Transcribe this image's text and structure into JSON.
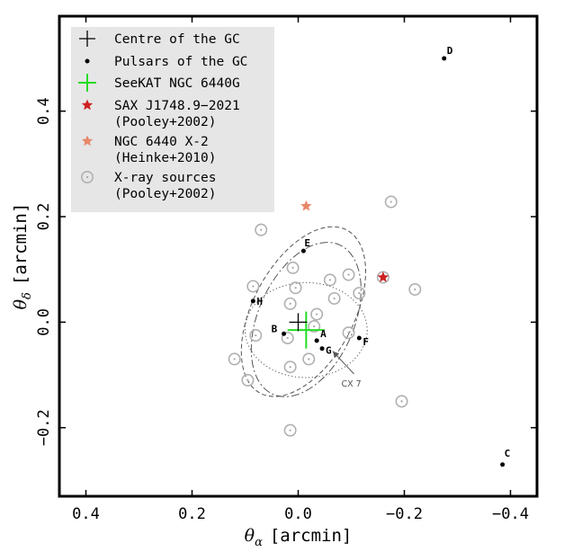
{
  "chart_data": {
    "type": "scatter",
    "xlabel_symbol": "θ",
    "xlabel_sub": "α",
    "xlabel_unit": "[arcmin]",
    "ylabel_symbol": "θ",
    "ylabel_sub": "δ",
    "ylabel_unit": "[arcmin]",
    "xlim": [
      0.45,
      -0.45
    ],
    "ylim": [
      -0.33,
      0.58
    ],
    "x_ticks": [
      {
        "value": 0.4,
        "label": "0.4"
      },
      {
        "value": 0.2,
        "label": "0.2"
      },
      {
        "value": 0.0,
        "label": "0.0"
      },
      {
        "value": -0.2,
        "label": "−0.2"
      },
      {
        "value": -0.4,
        "label": "−0.4"
      }
    ],
    "y_ticks": [
      {
        "value": -0.2,
        "label": "−0.2"
      },
      {
        "value": 0.0,
        "label": "0.0"
      },
      {
        "value": 0.2,
        "label": "0.2"
      },
      {
        "value": 0.4,
        "label": "0.4"
      }
    ],
    "grid": false,
    "legend_position": "top-left",
    "legend": [
      {
        "label": "Centre of the GC",
        "marker": "plus",
        "color": "#000000"
      },
      {
        "label": "Pulsars of the GC",
        "marker": "dot",
        "color": "#000000"
      },
      {
        "label": "SeeKAT NGC 6440G",
        "marker": "plus",
        "color": "#22dd22"
      },
      {
        "label": "SAX J1748.9−2021\n(Pooley+2002)",
        "marker": "star",
        "color": "#cc2222"
      },
      {
        "label": "NGC 6440 X-2\n(Heinke+2010)",
        "marker": "star",
        "color": "#e8876a"
      },
      {
        "label": "X-ray sources\n(Pooley+2002)",
        "marker": "ringdot",
        "color": "#aaaaaa"
      }
    ],
    "centre_of_gc": {
      "x": 0.0,
      "y": 0.0
    },
    "pulsars": [
      {
        "name": "A",
        "x": -0.035,
        "y": -0.035
      },
      {
        "name": "B",
        "x": 0.027,
        "y": -0.022
      },
      {
        "name": "C",
        "x": -0.385,
        "y": -0.27
      },
      {
        "name": "D",
        "x": -0.275,
        "y": 0.5
      },
      {
        "name": "E",
        "x": -0.01,
        "y": 0.135
      },
      {
        "name": "F",
        "x": -0.115,
        "y": -0.03
      },
      {
        "name": "G",
        "x": -0.045,
        "y": -0.05
      },
      {
        "name": "H",
        "x": 0.085,
        "y": 0.04
      }
    ],
    "seekat_position": {
      "x": -0.015,
      "y": -0.015,
      "x_err": 0.035,
      "y_err": 0.035
    },
    "sax_j1748": {
      "x": -0.16,
      "y": 0.085
    },
    "ngc6440_x2": {
      "x": -0.015,
      "y": 0.22
    },
    "xray_sources": [
      {
        "x": 0.07,
        "y": 0.175
      },
      {
        "x": 0.085,
        "y": 0.068
      },
      {
        "x": 0.08,
        "y": -0.025
      },
      {
        "x": 0.12,
        "y": -0.07
      },
      {
        "x": 0.095,
        "y": -0.11
      },
      {
        "x": 0.01,
        "y": 0.103
      },
      {
        "x": 0.005,
        "y": 0.065
      },
      {
        "x": -0.06,
        "y": 0.08
      },
      {
        "x": -0.068,
        "y": 0.045
      },
      {
        "x": -0.095,
        "y": 0.09
      },
      {
        "x": -0.115,
        "y": 0.055
      },
      {
        "x": -0.035,
        "y": 0.015
      },
      {
        "x": -0.03,
        "y": -0.008
      },
      {
        "x": 0.02,
        "y": -0.03
      },
      {
        "x": -0.095,
        "y": -0.02
      },
      {
        "x": -0.02,
        "y": -0.07
      },
      {
        "x": 0.015,
        "y": -0.085
      },
      {
        "x": 0.015,
        "y": 0.035
      },
      {
        "x": -0.16,
        "y": 0.085
      },
      {
        "x": -0.175,
        "y": 0.228
      },
      {
        "x": -0.22,
        "y": 0.062
      },
      {
        "x": -0.195,
        "y": -0.15
      },
      {
        "x": 0.015,
        "y": -0.205
      }
    ],
    "ellipses": [
      {
        "style": "dotted",
        "cx": -0.015,
        "cy": -0.015,
        "rx": 0.115,
        "ry": 0.09,
        "angle": 0
      },
      {
        "style": "dashed",
        "cx": -0.01,
        "cy": 0.02,
        "rx": 0.095,
        "ry": 0.175,
        "angle": 28
      },
      {
        "style": "dashdot",
        "cx": -0.015,
        "cy": 0.005,
        "rx": 0.09,
        "ry": 0.155,
        "angle": 24
      }
    ],
    "annotation": {
      "text": "CX 7",
      "arrow_from": {
        "x": -0.105,
        "y": -0.098
      },
      "arrow_to": {
        "x": -0.065,
        "y": -0.055
      }
    }
  }
}
